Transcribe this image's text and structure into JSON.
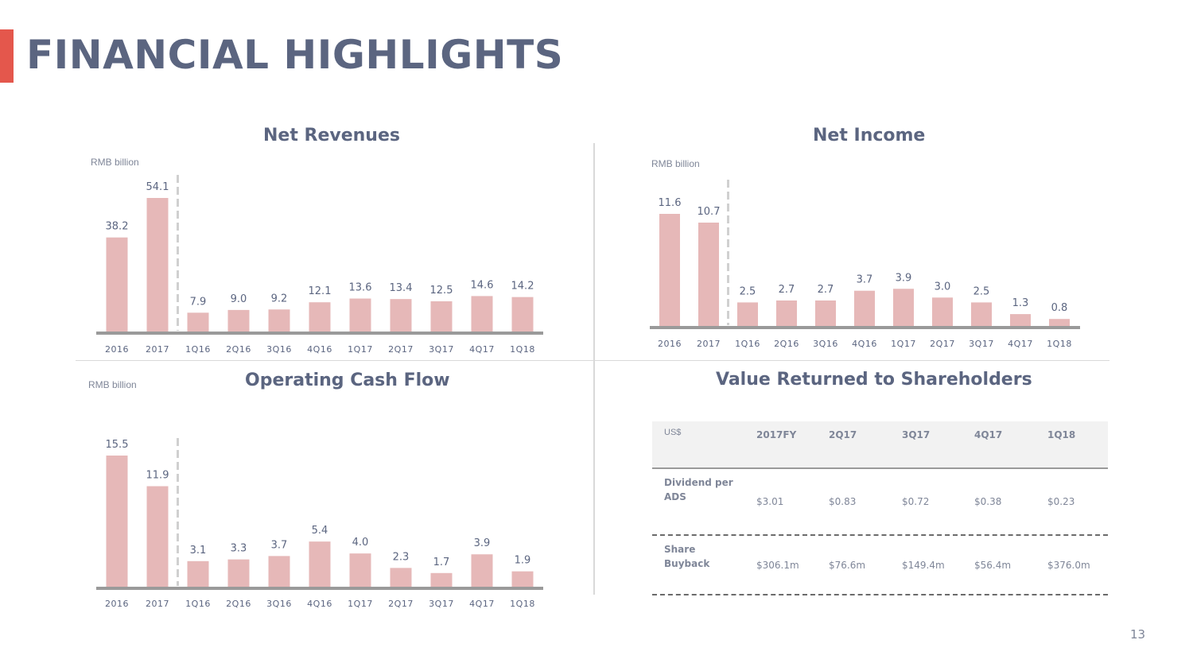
{
  "page": {
    "title": "FINANCIAL HIGHLIGHTS",
    "page_number": "13",
    "colors": {
      "accent": "#e4574c",
      "bar": "#e6b8b8",
      "text": "#5b6580",
      "axis": "#9a9a9a"
    }
  },
  "chart_data": [
    {
      "type": "bar",
      "title": "Net Revenues",
      "unit": "RMB billion",
      "categories": [
        "2016",
        "2017",
        "1Q16",
        "2Q16",
        "3Q16",
        "4Q16",
        "1Q17",
        "2Q17",
        "3Q17",
        "4Q17",
        "1Q18"
      ],
      "values": [
        38.2,
        54.1,
        7.9,
        9.0,
        9.2,
        12.1,
        13.6,
        13.4,
        12.5,
        14.6,
        14.2
      ],
      "value_labels": [
        "38.2",
        "54.1",
        "7.9",
        "9.0",
        "9.2",
        "12.1",
        "13.6",
        "13.4",
        "12.5",
        "14.6",
        "14.2"
      ],
      "separator_after_index": 1
    },
    {
      "type": "bar",
      "title": "Net Income",
      "unit": "RMB billion",
      "categories": [
        "2016",
        "2017",
        "1Q16",
        "2Q16",
        "3Q16",
        "4Q16",
        "1Q17",
        "2Q17",
        "3Q17",
        "4Q17",
        "1Q18"
      ],
      "values": [
        11.6,
        10.7,
        2.5,
        2.7,
        2.7,
        3.7,
        3.9,
        3.0,
        2.5,
        1.3,
        0.8
      ],
      "value_labels": [
        "11.6",
        "10.7",
        "2.5",
        "2.7",
        "2.7",
        "3.7",
        "3.9",
        "3.0",
        "2.5",
        "1.3",
        "0.8"
      ],
      "separator_after_index": 1
    },
    {
      "type": "bar",
      "title": "Operating Cash Flow",
      "unit": "RMB billion",
      "categories": [
        "2016",
        "2017",
        "1Q16",
        "2Q16",
        "3Q16",
        "4Q16",
        "1Q17",
        "2Q17",
        "3Q17",
        "4Q17",
        "1Q18"
      ],
      "values": [
        15.5,
        11.9,
        3.1,
        3.3,
        3.7,
        5.4,
        4.0,
        2.3,
        1.7,
        3.9,
        1.9
      ],
      "value_labels": [
        "15.5",
        "11.9",
        "3.1",
        "3.3",
        "3.7",
        "5.4",
        "4.0",
        "2.3",
        "1.7",
        "3.9",
        "1.9"
      ],
      "separator_after_index": 1
    },
    {
      "type": "table",
      "title": "Value Returned to Shareholders",
      "unit": "US$",
      "columns": [
        "2017FY",
        "2Q17",
        "3Q17",
        "4Q17",
        "1Q18"
      ],
      "rows": [
        {
          "label": "Dividend per ADS",
          "values": [
            "$3.01",
            "$0.83",
            "$0.72",
            "$0.38",
            "$0.23"
          ]
        },
        {
          "label": "Share Buyback",
          "values": [
            "$306.1m",
            "$76.6m",
            "$149.4m",
            "$56.4m",
            "$376.0m"
          ]
        }
      ]
    }
  ]
}
